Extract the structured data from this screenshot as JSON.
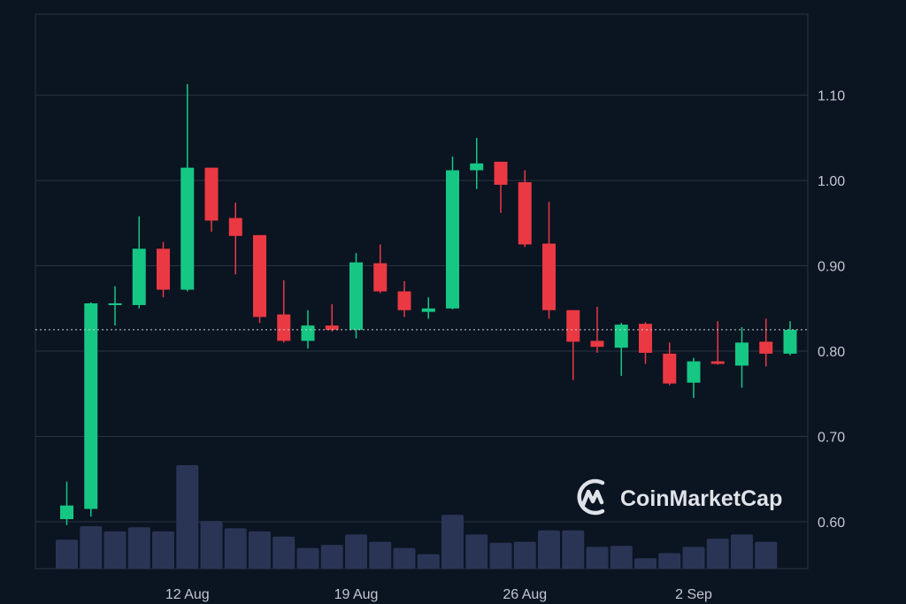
{
  "brand": {
    "name": "CoinMarketCap",
    "logo_icon": "coinmarketcap-logo-icon"
  },
  "colors": {
    "background": "#0b1421",
    "grid": "#2a3442",
    "axis_text": "#c3c8d0",
    "up": "#16c784",
    "down": "#ea3943",
    "volume": "#2a3556",
    "last_price_line": "#c9ced6",
    "logo": "#dfe3e8"
  },
  "chart_data": {
    "type": "candlestick",
    "title": "",
    "xlabel": "",
    "ylabel": "",
    "ylim": [
      0.545,
      1.195
    ],
    "y_ticks": [
      0.6,
      0.7,
      0.8,
      0.9,
      1.0,
      1.1
    ],
    "y_tick_labels": [
      "0.60",
      "0.70",
      "0.80",
      "0.90",
      "1.00",
      "1.10"
    ],
    "x_ticks": [
      {
        "label": "12 Aug",
        "index": 5
      },
      {
        "label": "19 Aug",
        "index": 12
      },
      {
        "label": "26 Aug",
        "index": 19
      },
      {
        "label": "2 Sep",
        "index": 26
      }
    ],
    "last_price": 0.825,
    "grid": true,
    "candles": [
      {
        "o": 0.603,
        "h": 0.647,
        "l": 0.596,
        "c": 0.619,
        "v": 0.28
      },
      {
        "o": 0.615,
        "h": 0.857,
        "l": 0.606,
        "c": 0.856,
        "v": 0.41
      },
      {
        "o": 0.856,
        "h": 0.876,
        "l": 0.83,
        "c": 0.856,
        "v": 0.36
      },
      {
        "o": 0.854,
        "h": 0.958,
        "l": 0.85,
        "c": 0.92,
        "v": 0.4
      },
      {
        "o": 0.92,
        "h": 0.928,
        "l": 0.863,
        "c": 0.872,
        "v": 0.36
      },
      {
        "o": 0.872,
        "h": 1.113,
        "l": 0.87,
        "c": 1.015,
        "v": 1.0
      },
      {
        "o": 1.015,
        "h": 1.015,
        "l": 0.94,
        "c": 0.953,
        "v": 0.46
      },
      {
        "o": 0.956,
        "h": 0.974,
        "l": 0.89,
        "c": 0.935,
        "v": 0.39
      },
      {
        "o": 0.936,
        "h": 0.936,
        "l": 0.833,
        "c": 0.84,
        "v": 0.36
      },
      {
        "o": 0.843,
        "h": 0.883,
        "l": 0.81,
        "c": 0.812,
        "v": 0.31
      },
      {
        "o": 0.812,
        "h": 0.848,
        "l": 0.803,
        "c": 0.83,
        "v": 0.2
      },
      {
        "o": 0.83,
        "h": 0.855,
        "l": 0.823,
        "c": 0.825,
        "v": 0.23
      },
      {
        "o": 0.825,
        "h": 0.915,
        "l": 0.815,
        "c": 0.904,
        "v": 0.33
      },
      {
        "o": 0.903,
        "h": 0.925,
        "l": 0.868,
        "c": 0.87,
        "v": 0.26
      },
      {
        "o": 0.87,
        "h": 0.882,
        "l": 0.84,
        "c": 0.848,
        "v": 0.2
      },
      {
        "o": 0.846,
        "h": 0.863,
        "l": 0.838,
        "c": 0.85,
        "v": 0.14
      },
      {
        "o": 0.85,
        "h": 1.028,
        "l": 0.849,
        "c": 1.012,
        "v": 0.52
      },
      {
        "o": 1.012,
        "h": 1.05,
        "l": 0.99,
        "c": 1.02,
        "v": 0.33
      },
      {
        "o": 1.022,
        "h": 1.022,
        "l": 0.962,
        "c": 0.995,
        "v": 0.25
      },
      {
        "o": 0.998,
        "h": 1.012,
        "l": 0.922,
        "c": 0.925,
        "v": 0.26
      },
      {
        "o": 0.926,
        "h": 0.975,
        "l": 0.838,
        "c": 0.848,
        "v": 0.37
      },
      {
        "o": 0.848,
        "h": 0.848,
        "l": 0.766,
        "c": 0.811,
        "v": 0.37
      },
      {
        "o": 0.812,
        "h": 0.852,
        "l": 0.798,
        "c": 0.805,
        "v": 0.21
      },
      {
        "o": 0.804,
        "h": 0.833,
        "l": 0.771,
        "c": 0.831,
        "v": 0.22
      },
      {
        "o": 0.832,
        "h": 0.834,
        "l": 0.785,
        "c": 0.798,
        "v": 0.1
      },
      {
        "o": 0.797,
        "h": 0.81,
        "l": 0.76,
        "c": 0.762,
        "v": 0.15
      },
      {
        "o": 0.763,
        "h": 0.792,
        "l": 0.745,
        "c": 0.788,
        "v": 0.21
      },
      {
        "o": 0.788,
        "h": 0.835,
        "l": 0.784,
        "c": 0.785,
        "v": 0.29
      },
      {
        "o": 0.783,
        "h": 0.828,
        "l": 0.757,
        "c": 0.81,
        "v": 0.33
      },
      {
        "o": 0.811,
        "h": 0.838,
        "l": 0.782,
        "c": 0.797,
        "v": 0.26
      },
      {
        "o": 0.797,
        "h": 0.835,
        "l": 0.795,
        "c": 0.825,
        "v": 0.0
      }
    ]
  }
}
